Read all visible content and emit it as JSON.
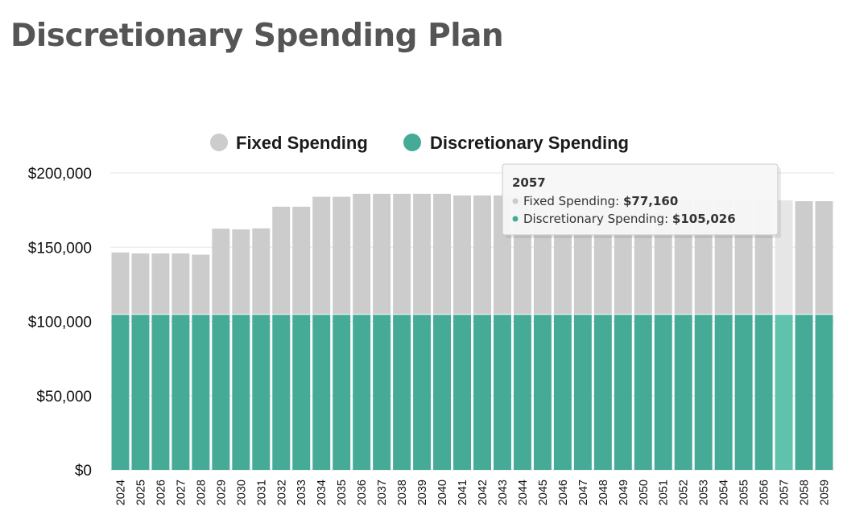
{
  "title": "Discretionary Spending Plan",
  "chart_data": {
    "type": "bar",
    "stacked": true,
    "ylim": [
      0,
      200000
    ],
    "yticks": [
      "$0",
      "$50,000",
      "$100,000",
      "$150,000",
      "$200,000"
    ],
    "ytick_values": [
      0,
      50000,
      100000,
      150000,
      200000
    ],
    "grid": true,
    "legend_position": "top-center",
    "categories": [
      "2024",
      "2025",
      "2026",
      "2027",
      "2028",
      "2029",
      "2030",
      "2031",
      "2032",
      "2033",
      "2034",
      "2035",
      "2036",
      "2037",
      "2038",
      "2039",
      "2040",
      "2041",
      "2042",
      "2043",
      "2044",
      "2045",
      "2046",
      "2047",
      "2048",
      "2049",
      "2050",
      "2051",
      "2052",
      "2053",
      "2054",
      "2055",
      "2056",
      "2057",
      "2058",
      "2059"
    ],
    "series": [
      {
        "name": "Discretionary Spending",
        "color": "#45ab97",
        "values": [
          105026,
          105026,
          105026,
          105026,
          105026,
          105026,
          105026,
          105026,
          105026,
          105026,
          105026,
          105026,
          105026,
          105026,
          105026,
          105026,
          105026,
          105026,
          105026,
          105026,
          105026,
          105026,
          105026,
          105026,
          105026,
          105026,
          105026,
          105026,
          105026,
          105026,
          105026,
          105026,
          105026,
          105026,
          105026,
          105026
        ]
      },
      {
        "name": "Fixed Spending",
        "color": "#cccccc",
        "values": [
          42000,
          41300,
          41300,
          41300,
          40500,
          58000,
          57500,
          58200,
          72800,
          72800,
          79500,
          79500,
          81500,
          81500,
          81500,
          81500,
          81500,
          80400,
          80400,
          80400,
          80000,
          79600,
          79200,
          78800,
          78500,
          78200,
          77900,
          77700,
          77500,
          77400,
          77300,
          77200,
          77200,
          77160,
          76500,
          76500
        ]
      }
    ],
    "tooltip": {
      "category": "2057",
      "lines": [
        {
          "label": "Fixed Spending: ",
          "value": "$77,160",
          "color": "#cccccc"
        },
        {
          "label": "Discretionary Spending: ",
          "value": "$105,026",
          "color": "#45ab97"
        }
      ]
    },
    "highlight_category": "2057",
    "highlight_colors": {
      "Discretionary Spending": "#5fc2ad",
      "Fixed Spending": "#e6e6e6"
    }
  }
}
